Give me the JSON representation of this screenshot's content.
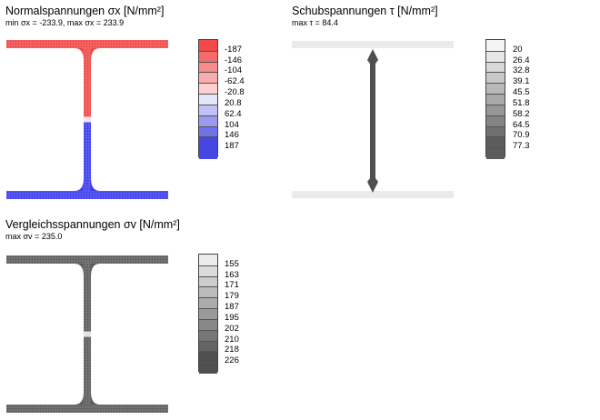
{
  "panels": [
    {
      "id": "normal",
      "title": "Normalspannungen σx [N/mm²]",
      "subtitle": "min σx = -233.9,  max σx = 233.9",
      "legend_values": [
        "-187",
        "-146",
        "-104",
        "-62.4",
        "-20.8",
        "20.8",
        "62.4",
        "104",
        "146",
        "187"
      ],
      "legend_colors": [
        "#f24a4a",
        "#f56a6a",
        "#f78a8a",
        "#faacac",
        "#fdd0d0",
        "#e6e6f8",
        "#c2c2f6",
        "#9a9af0",
        "#7070ea",
        "#4646e4"
      ],
      "colors": {
        "top": "#f04848",
        "bottom": "#3c3cf0",
        "neutral": "#f0e0e8"
      }
    },
    {
      "id": "shear",
      "title": "Schubspannungen τ [N/mm²]",
      "subtitle": "max τ = 84.4",
      "legend_values": [
        "20",
        "26.4",
        "32.8",
        "39.1",
        "45.5",
        "51.8",
        "58.2",
        "64.5",
        "70.9",
        "77.3"
      ],
      "legend_colors": [
        "#f4f4f4",
        "#e6e6e6",
        "#d8d8d8",
        "#c8c8c8",
        "#b8b8b8",
        "#a8a8a8",
        "#969696",
        "#848484",
        "#707070",
        "#5c5c5c"
      ],
      "colors": {
        "flange": "#e8e8e8",
        "web": "#505050"
      }
    },
    {
      "id": "equiv",
      "title": "Vergleichsspannungen σv [N/mm²]",
      "subtitle": "max σv = 235.0",
      "legend_values": [
        "155",
        "163",
        "171",
        "179",
        "187",
        "195",
        "202",
        "210",
        "218",
        "226"
      ],
      "legend_colors": [
        "#ececec",
        "#dcdcdc",
        "#cccccc",
        "#bcbcbc",
        "#acacac",
        "#9a9a9a",
        "#888888",
        "#767676",
        "#646464",
        "#505050"
      ],
      "colors": {
        "section": "#5a5a5a",
        "neutral": "#e0e0e0"
      }
    }
  ]
}
